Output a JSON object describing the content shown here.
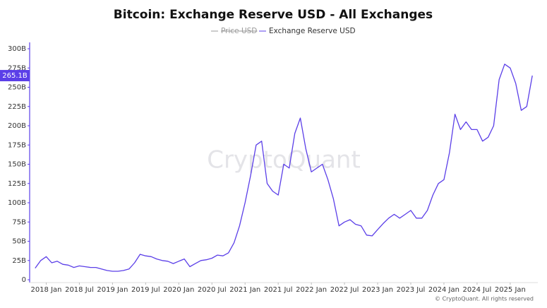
{
  "chart_data": {
    "type": "line",
    "title": "Bitcoin: Exchange Reserve USD - All Exchanges",
    "hidden_series": [
      {
        "name": "Price USD",
        "color": "#9a9a9a"
      }
    ],
    "watermark": "CryptoQuant",
    "copyright": "© CryptoQuant. All rights reserved",
    "current_label": "265.1B",
    "x": [
      "2017-11",
      "2017-12",
      "2018-01",
      "2018-02",
      "2018-03",
      "2018-04",
      "2018-05",
      "2018-06",
      "2018-07",
      "2018-08",
      "2018-09",
      "2018-10",
      "2018-11",
      "2018-12",
      "2019-01",
      "2019-02",
      "2019-03",
      "2019-04",
      "2019-05",
      "2019-06",
      "2019-07",
      "2019-08",
      "2019-09",
      "2019-10",
      "2019-11",
      "2019-12",
      "2020-01",
      "2020-02",
      "2020-03",
      "2020-04",
      "2020-05",
      "2020-06",
      "2020-07",
      "2020-08",
      "2020-09",
      "2020-10",
      "2020-11",
      "2020-12",
      "2021-01",
      "2021-02",
      "2021-03",
      "2021-04",
      "2021-05",
      "2021-06",
      "2021-07",
      "2021-08",
      "2021-09",
      "2021-10",
      "2021-11",
      "2021-12",
      "2022-01",
      "2022-02",
      "2022-03",
      "2022-04",
      "2022-05",
      "2022-06",
      "2022-07",
      "2022-08",
      "2022-09",
      "2022-10",
      "2022-11",
      "2022-12",
      "2023-01",
      "2023-02",
      "2023-03",
      "2023-04",
      "2023-05",
      "2023-06",
      "2023-07",
      "2023-08",
      "2023-09",
      "2023-10",
      "2023-11",
      "2023-12",
      "2024-01",
      "2024-02",
      "2024-03",
      "2024-04",
      "2024-05",
      "2024-06",
      "2024-07",
      "2024-08",
      "2024-09",
      "2024-10",
      "2024-11",
      "2024-12",
      "2025-01",
      "2025-02",
      "2025-03",
      "2025-04",
      "2025-05"
    ],
    "series": [
      {
        "name": "Exchange Reserve USD",
        "color": "#5b3fe8",
        "values": [
          15,
          25,
          30,
          22,
          24,
          20,
          19,
          16,
          18,
          17,
          16,
          16,
          14,
          12,
          11,
          11,
          12,
          14,
          22,
          33,
          31,
          30,
          27,
          25,
          24,
          21,
          24,
          27,
          17,
          21,
          25,
          26,
          28,
          32,
          31,
          35,
          48,
          70,
          100,
          135,
          175,
          180,
          125,
          115,
          110,
          150,
          145,
          190,
          210,
          170,
          140,
          145,
          150,
          130,
          105,
          70,
          75,
          78,
          72,
          70,
          58,
          57,
          65,
          73,
          80,
          85,
          80,
          85,
          90,
          80,
          80,
          90,
          110,
          125,
          130,
          165,
          215,
          195,
          205,
          195,
          195,
          180,
          185,
          200,
          260,
          280,
          275,
          255,
          220,
          225,
          265.1
        ]
      }
    ],
    "xlim": [
      "2017-10",
      "2025-06"
    ],
    "xticks": [
      {
        "value": "2018-01",
        "label": "2018 Jan"
      },
      {
        "value": "2018-07",
        "label": "2018 Jul"
      },
      {
        "value": "2019-01",
        "label": "2019 Jan"
      },
      {
        "value": "2019-07",
        "label": "2019 Jul"
      },
      {
        "value": "2020-01",
        "label": "2020 Jan"
      },
      {
        "value": "2020-07",
        "label": "2020 Jul"
      },
      {
        "value": "2021-01",
        "label": "2021 Jan"
      },
      {
        "value": "2021-07",
        "label": "2021 Jul"
      },
      {
        "value": "2022-01",
        "label": "2022 Jan"
      },
      {
        "value": "2022-07",
        "label": "2022 Jul"
      },
      {
        "value": "2023-01",
        "label": "2023 Jan"
      },
      {
        "value": "2023-07",
        "label": "2023 Jul"
      },
      {
        "value": "2024-01",
        "label": "2024 Jan"
      },
      {
        "value": "2024-07",
        "label": "2024 Jul"
      },
      {
        "value": "2025-01",
        "label": "2025 Jan"
      }
    ],
    "ylim": [
      0,
      300
    ],
    "yticks": [
      0,
      {
        "value": 25,
        "label": "25B"
      },
      {
        "value": 50,
        "label": "50B"
      },
      {
        "value": 75,
        "label": "75B"
      },
      {
        "value": 100,
        "label": "100B"
      },
      {
        "value": 125,
        "label": "125B"
      },
      {
        "value": 150,
        "label": "150B"
      },
      {
        "value": 175,
        "label": "175B"
      },
      {
        "value": 200,
        "label": "200B"
      },
      {
        "value": 225,
        "label": "225B"
      },
      {
        "value": 250,
        "label": "250B"
      },
      {
        "value": 275,
        "label": "275B"
      },
      {
        "value": 300,
        "label": "300B"
      }
    ]
  }
}
